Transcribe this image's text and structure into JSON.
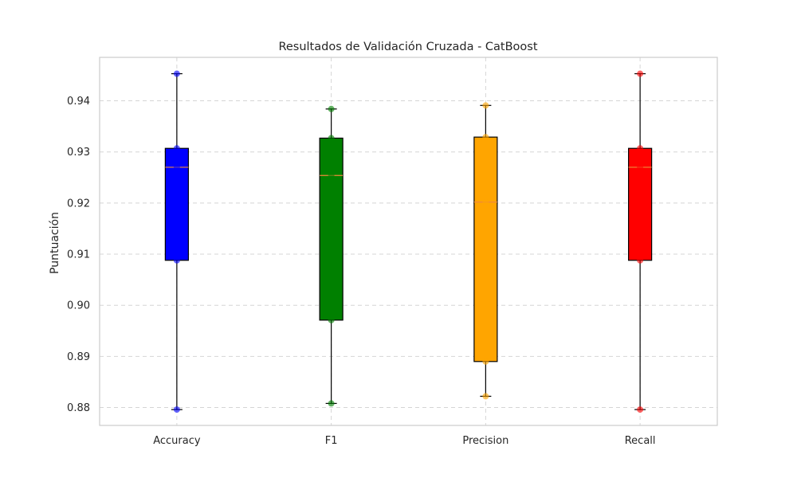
{
  "chart_data": {
    "type": "box",
    "title": "Resultados de Validación Cruzada - CatBoost",
    "xlabel": "",
    "ylabel": "Puntuación",
    "ylim": [
      0.8765,
      0.9485
    ],
    "yticks": [
      0.88,
      0.89,
      0.9,
      0.91,
      0.92,
      0.93,
      0.94
    ],
    "ytick_labels": [
      "0.88",
      "0.89",
      "0.90",
      "0.91",
      "0.92",
      "0.93",
      "0.94"
    ],
    "grid": true,
    "categories": [
      "Accuracy",
      "F1",
      "Precision",
      "Recall"
    ],
    "boxes": [
      {
        "min": 0.8796,
        "q1": 0.9088,
        "median": 0.927,
        "q3": 0.9307,
        "max": 0.9453,
        "color": "#0000ff",
        "points": [
          0.8796,
          0.9088,
          0.927,
          0.9307,
          0.9453
        ]
      },
      {
        "min": 0.8808,
        "q1": 0.8971,
        "median": 0.9254,
        "q3": 0.9327,
        "max": 0.9384,
        "color": "#008000",
        "points": [
          0.8808,
          0.8971,
          0.9254,
          0.9327,
          0.9384
        ]
      },
      {
        "min": 0.8822,
        "q1": 0.889,
        "median": 0.9202,
        "q3": 0.9329,
        "max": 0.9391,
        "color": "#ffa500",
        "points": [
          0.8822,
          0.889,
          0.9202,
          0.9329,
          0.9391
        ]
      },
      {
        "min": 0.8796,
        "q1": 0.9088,
        "median": 0.927,
        "q3": 0.9307,
        "max": 0.9453,
        "color": "#ff0000",
        "points": [
          0.8796,
          0.9088,
          0.927,
          0.9307,
          0.9453
        ]
      }
    ]
  }
}
